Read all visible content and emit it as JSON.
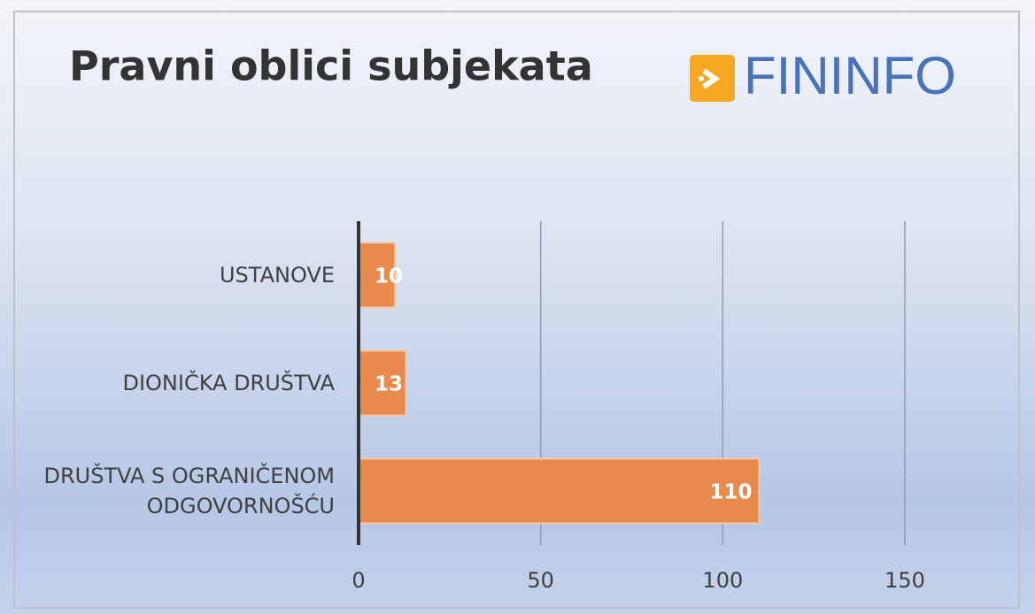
{
  "logo": "FININFO",
  "chart_data": {
    "type": "bar",
    "orientation": "horizontal",
    "title": "Pravni oblici subjekata",
    "categories": [
      "USTANOVE",
      "DIONIČKA DRUŠTVA",
      "DRUŠTVA S OGRANIČENOM ODGOVORNOŠĆU"
    ],
    "values": [
      10,
      13,
      110
    ],
    "color": "#e8894e",
    "xlim": [
      0,
      150
    ],
    "xticks": [
      0,
      50,
      100,
      150
    ],
    "grid": true,
    "data_labels": true
  }
}
